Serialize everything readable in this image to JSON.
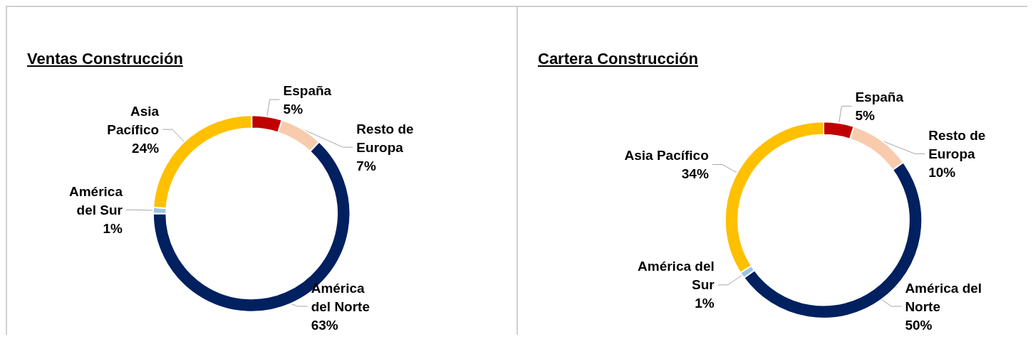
{
  "chart_data": [
    {
      "type": "donut",
      "title": "Ventas Construcción",
      "categories": [
        "España",
        "Resto de\nEuropa",
        "América\ndel Norte",
        "América\ndel Sur",
        "Asia\nPacífico"
      ],
      "values": [
        5,
        7,
        63,
        1,
        24
      ],
      "value_labels": [
        "5%",
        "7%",
        "63%",
        "1%",
        "24%"
      ],
      "colors": [
        "#c00000",
        "#f8cbad",
        "#002060",
        "#9dc3e6",
        "#ffc000"
      ],
      "legend": false
    },
    {
      "type": "donut",
      "title": "Cartera Construcción",
      "categories": [
        "España",
        "Resto de\nEuropa",
        "América del\nNorte",
        "América del\nSur",
        "Asia Pacífico"
      ],
      "values": [
        5,
        10,
        50,
        1,
        34
      ],
      "value_labels": [
        "5%",
        "10%",
        "50%",
        "1%",
        "34%"
      ],
      "colors": [
        "#c00000",
        "#f8cbad",
        "#002060",
        "#9dc3e6",
        "#ffc000"
      ],
      "legend": false
    }
  ]
}
